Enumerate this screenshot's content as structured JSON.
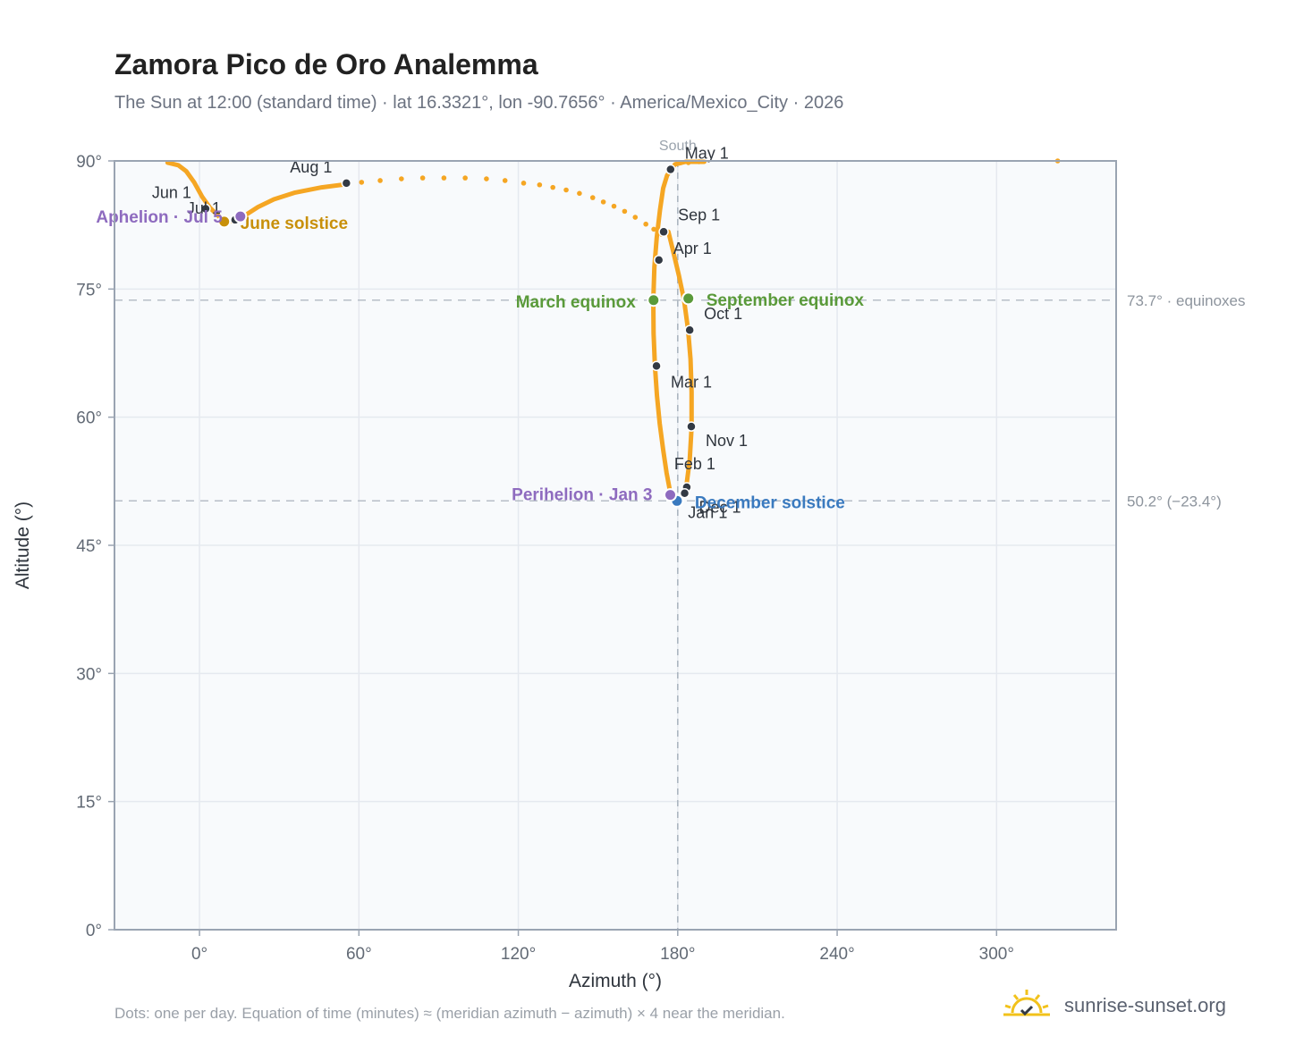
{
  "header": {
    "title": "Zamora Pico de Oro Analemma",
    "subtitle": "The Sun at 12:00 (standard time) · lat 16.3321°, lon -90.7656° · America/Mexico_City · 2026"
  },
  "footer": {
    "note": "Dots: one per day. Equation of time (minutes) ≈ (meridian azimuth − azimuth) × 4 near the meridian.",
    "brand": "sunrise-sunset.org",
    "brand_icon": "sun-check-icon"
  },
  "colors": {
    "curve": "#f5a623",
    "month_marker": "#333a44",
    "equinox": "#5a9a3a",
    "june_solstice": "#c8900a",
    "december_solstice": "#3a7abf",
    "apsis": "#8e6bbf",
    "grid": "#e5e9ef",
    "plot_bg": "#f8fafc"
  },
  "chart_data": {
    "type": "scatter",
    "xlabel": "Azimuth (°)",
    "ylabel": "Altitude (°)",
    "xlim": [
      -32,
      345
    ],
    "ylim": [
      0,
      90
    ],
    "x_ticks": [
      0,
      60,
      120,
      180,
      240,
      300
    ],
    "x_tick_labels": [
      "0°",
      "60°",
      "120°",
      "180°",
      "240°",
      "300°"
    ],
    "y_ticks": [
      0,
      15,
      30,
      45,
      60,
      75,
      90
    ],
    "y_tick_labels": [
      "0°",
      "15°",
      "30°",
      "45°",
      "60°",
      "75°",
      "90°"
    ],
    "grid": true,
    "meridian": {
      "azimuth": 180,
      "label": "South"
    },
    "reference_lines": [
      {
        "altitude": 73.7,
        "label": "73.7° · equinoxes"
      },
      {
        "altitude": 50.2,
        "label": "50.2° (−23.4°)"
      }
    ],
    "path": [
      [
        178,
        50.2
      ],
      [
        177,
        51.5
      ],
      [
        175.8,
        53.5
      ],
      [
        174.5,
        56.2
      ],
      [
        173.2,
        59.3
      ],
      [
        172.2,
        62.5
      ],
      [
        171.4,
        66
      ],
      [
        170.9,
        69.8
      ],
      [
        170.8,
        73.7
      ],
      [
        171.2,
        77.6
      ],
      [
        172.1,
        81
      ],
      [
        173.3,
        84.2
      ],
      [
        174.5,
        86.8
      ],
      [
        176,
        88.3
      ],
      [
        177.5,
        89
      ],
      [
        179,
        89.6
      ],
      [
        183,
        89.9
      ],
      [
        190,
        89.9
      ]
    ],
    "path_north": [
      [
        -12,
        89.8
      ],
      [
        -8,
        89.5
      ],
      [
        -5,
        88.8
      ],
      [
        -2,
        87.5
      ],
      [
        1,
        85.8
      ],
      [
        4,
        84.5
      ],
      [
        8,
        83.3
      ],
      [
        11,
        82.9
      ],
      [
        14,
        83
      ],
      [
        17,
        83.6
      ],
      [
        22,
        84.6
      ],
      [
        28,
        85.5
      ],
      [
        36,
        86.3
      ],
      [
        46,
        86.9
      ],
      [
        56,
        87.3
      ]
    ],
    "path_fall": [
      [
        176.5,
        81.7
      ],
      [
        178.2,
        79.5
      ],
      [
        180.5,
        76.5
      ],
      [
        182.4,
        73.7
      ],
      [
        183.9,
        70.2
      ],
      [
        184.8,
        66.8
      ],
      [
        185.2,
        63
      ],
      [
        185.2,
        58.8
      ],
      [
        184.5,
        55
      ],
      [
        183.2,
        51.8
      ],
      [
        181.2,
        50.6
      ],
      [
        178,
        50.2
      ]
    ],
    "dotted": [
      [
        61,
        87.5
      ],
      [
        68,
        87.7
      ],
      [
        76,
        87.9
      ],
      [
        84,
        88
      ],
      [
        92,
        88
      ],
      [
        100,
        88
      ],
      [
        108,
        87.9
      ],
      [
        115,
        87.7
      ],
      [
        122,
        87.4
      ],
      [
        128,
        87.2
      ],
      [
        133,
        86.9
      ],
      [
        138,
        86.6
      ],
      [
        143,
        86.2
      ],
      [
        148,
        85.7
      ],
      [
        152,
        85.2
      ],
      [
        156,
        84.7
      ],
      [
        160,
        84.1
      ],
      [
        164,
        83.4
      ],
      [
        168,
        82.6
      ],
      [
        171,
        82
      ],
      [
        174,
        81.4
      ],
      [
        184,
        89.8
      ],
      [
        188,
        89.9
      ],
      [
        323,
        90
      ]
    ],
    "month_markers": [
      {
        "label": "Jan 1",
        "azimuth": 180.5,
        "altitude": 50.3
      },
      {
        "label": "Feb 1",
        "azimuth": 183.4,
        "altitude": 51.8
      },
      {
        "label": "Mar 1",
        "azimuth": 172.0,
        "altitude": 66.0
      },
      {
        "label": "Apr 1",
        "azimuth": 172.9,
        "altitude": 78.4
      },
      {
        "label": "May 1",
        "azimuth": 177.3,
        "altitude": 89.0
      },
      {
        "label": "Jun 1",
        "azimuth": 2.3,
        "altitude": 84.4
      },
      {
        "label": "Jul 1",
        "azimuth": 13.4,
        "altitude": 83.1
      },
      {
        "label": "Aug 1",
        "azimuth": 55.3,
        "altitude": 87.4
      },
      {
        "label": "Sep 1",
        "azimuth": 174.7,
        "altitude": 81.7
      },
      {
        "label": "Oct 1",
        "azimuth": 184.5,
        "altitude": 70.2
      },
      {
        "label": "Nov 1",
        "azimuth": 185.1,
        "altitude": 58.9
      },
      {
        "label": "Dec 1",
        "azimuth": 182.6,
        "altitude": 51.1
      }
    ],
    "events": [
      {
        "label": "March equinox",
        "azimuth": 170.9,
        "altitude": 73.7,
        "kind": "equinox"
      },
      {
        "label": "September equinox",
        "azimuth": 184.0,
        "altitude": 73.9,
        "kind": "equinox"
      },
      {
        "label": "June solstice",
        "azimuth": 9.3,
        "altitude": 82.9,
        "kind": "june_solstice"
      },
      {
        "label": "December solstice",
        "azimuth": 179.7,
        "altitude": 50.2,
        "kind": "december_solstice"
      },
      {
        "label": "Aphelion · Jul 5",
        "azimuth": 15.4,
        "altitude": 83.5,
        "kind": "apsis"
      },
      {
        "label": "Perihelion · Jan 3",
        "azimuth": 177.2,
        "altitude": 50.9,
        "kind": "apsis"
      }
    ]
  }
}
